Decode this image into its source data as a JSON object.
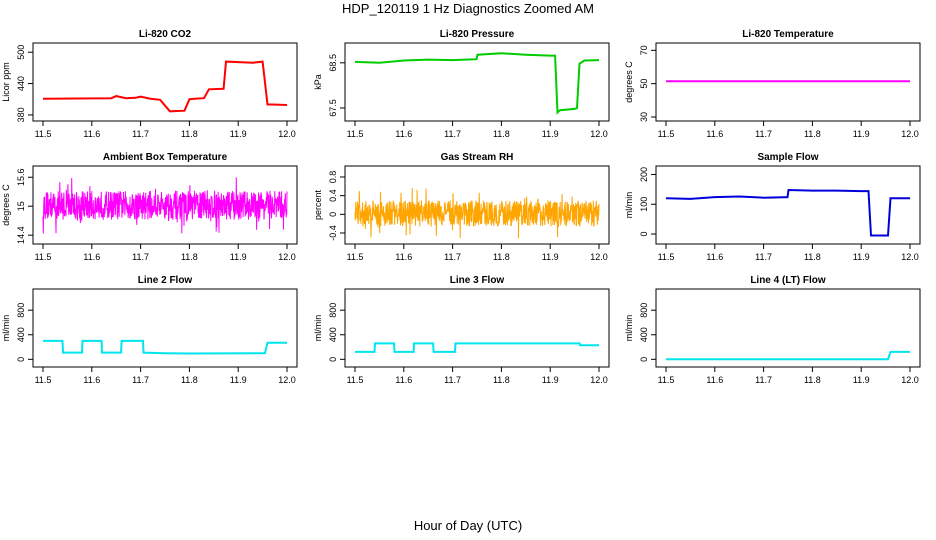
{
  "page": {
    "title": "HDP_120119  1 Hz Diagnostics Zoomed AM",
    "xlabel": "Hour of Day (UTC)"
  },
  "chart_data": [
    {
      "type": "line",
      "title": "Li-820 CO2",
      "xlabel": "",
      "ylabel": "Licor ppm",
      "color": "#ff0000",
      "xlim": [
        11.5,
        12.0
      ],
      "ylim": [
        376,
        510
      ],
      "xticks": [
        11.5,
        11.6,
        11.7,
        11.8,
        11.9,
        12.0
      ],
      "yticks": [
        380,
        440,
        500
      ],
      "series": [
        {
          "x": [
            11.5,
            11.64,
            11.65,
            11.67,
            11.69,
            11.7,
            11.72,
            11.74,
            11.76,
            11.79,
            11.8,
            11.81,
            11.83,
            11.84,
            11.87,
            11.875,
            11.93,
            11.95,
            11.96,
            11.97,
            12.0
          ],
          "y": [
            411,
            412,
            416,
            412,
            413,
            415,
            411,
            409,
            387,
            388,
            410,
            411,
            412,
            429,
            430,
            482,
            480,
            482,
            400,
            400,
            399
          ]
        }
      ]
    },
    {
      "type": "line",
      "title": "Li-820 Pressure",
      "xlabel": "",
      "ylabel": "kPa",
      "color": "#00cc00",
      "xlim": [
        11.5,
        12.0
      ],
      "ylim": [
        67.3,
        68.85
      ],
      "xticks": [
        11.5,
        11.6,
        11.7,
        11.8,
        11.9,
        12.0
      ],
      "yticks": [
        67.5,
        68.5
      ],
      "series": [
        {
          "x": [
            11.5,
            11.55,
            11.6,
            11.65,
            11.7,
            11.749,
            11.751,
            11.8,
            11.85,
            11.9,
            11.91,
            11.915,
            11.92,
            11.95,
            11.955,
            11.96,
            11.97,
            12.0
          ],
          "y": [
            68.52,
            68.5,
            68.55,
            68.57,
            68.56,
            68.58,
            68.68,
            68.71,
            68.68,
            68.66,
            68.66,
            67.4,
            67.45,
            67.48,
            67.5,
            68.48,
            68.55,
            68.56
          ]
        }
      ]
    },
    {
      "type": "line",
      "title": "Li-820 Temperature",
      "xlabel": "",
      "ylabel": "degrees C",
      "color": "#ff00ff",
      "xlim": [
        11.5,
        12.0
      ],
      "ylim": [
        30,
        72
      ],
      "xticks": [
        11.5,
        11.6,
        11.7,
        11.8,
        11.9,
        12.0
      ],
      "yticks": [
        30,
        50,
        70
      ],
      "series": [
        {
          "x": [
            11.5,
            12.0
          ],
          "y": [
            51.5,
            51.5
          ]
        }
      ]
    },
    {
      "type": "line",
      "title": "Ambient Box Temperature",
      "xlabel": "",
      "ylabel": "degrees C",
      "color": "#ff00ff",
      "xlim": [
        11.5,
        12.0
      ],
      "ylim": [
        14.3,
        15.75
      ],
      "xticks": [
        11.5,
        11.6,
        11.7,
        11.8,
        11.9,
        12.0
      ],
      "yticks": [
        14.4,
        15.0,
        15.6
      ],
      "noise": {
        "center": 15.02,
        "spread": 0.3,
        "spike": 0.6
      },
      "series": [
        {
          "x": [
            11.5,
            12.0
          ],
          "y": [
            15.02,
            15.02
          ]
        }
      ]
    },
    {
      "type": "line",
      "title": "Gas Stream RH",
      "xlabel": "",
      "ylabel": "percent",
      "color": "#ffa500",
      "xlim": [
        11.5,
        12.0
      ],
      "ylim": [
        -0.55,
        0.95
      ],
      "xticks": [
        11.5,
        11.6,
        11.7,
        11.8,
        11.9,
        12.0
      ],
      "yticks": [
        -0.4,
        0.0,
        0.4,
        0.8
      ],
      "noise": {
        "center": 0.02,
        "spread": 0.28,
        "spike": 0.55
      },
      "series": [
        {
          "x": [
            11.5,
            12.0
          ],
          "y": [
            0.02,
            0.02
          ]
        }
      ]
    },
    {
      "type": "line",
      "title": "Sample Flow",
      "xlabel": "",
      "ylabel": "ml/min",
      "color": "#0000dd",
      "xlim": [
        11.5,
        12.0
      ],
      "ylim": [
        -20,
        215
      ],
      "xticks": [
        11.5,
        11.6,
        11.7,
        11.8,
        11.9,
        12.0
      ],
      "yticks": [
        0,
        100,
        200
      ],
      "series": [
        {
          "x": [
            11.5,
            11.55,
            11.6,
            11.65,
            11.7,
            11.749,
            11.751,
            11.8,
            11.85,
            11.9,
            11.915,
            11.92,
            11.955,
            11.96,
            12.0
          ],
          "y": [
            120,
            118,
            124,
            126,
            122,
            124,
            148,
            146,
            146,
            144,
            144,
            -5,
            -5,
            120,
            120
          ]
        }
      ]
    },
    {
      "type": "line",
      "title": "Line 2 Flow",
      "xlabel": "",
      "ylabel": "ml/min",
      "color": "#00e5ee",
      "xlim": [
        11.5,
        12.0
      ],
      "ylim": [
        -60,
        1080
      ],
      "xticks": [
        11.5,
        11.6,
        11.7,
        11.8,
        11.9,
        12.0
      ],
      "yticks": [
        0,
        400,
        800
      ],
      "series": [
        {
          "x": [
            11.5,
            11.54,
            11.541,
            11.58,
            11.581,
            11.62,
            11.621,
            11.66,
            11.661,
            11.705,
            11.706,
            11.75,
            11.8,
            11.955,
            11.96,
            12.0
          ],
          "y": [
            300,
            300,
            110,
            110,
            300,
            300,
            110,
            110,
            300,
            300,
            110,
            100,
            95,
            100,
            270,
            270
          ]
        }
      ]
    },
    {
      "type": "line",
      "title": "Line 3 Flow",
      "xlabel": "",
      "ylabel": "ml/min",
      "color": "#00e5ee",
      "xlim": [
        11.5,
        12.0
      ],
      "ylim": [
        -60,
        1080
      ],
      "xticks": [
        11.5,
        11.6,
        11.7,
        11.8,
        11.9,
        12.0
      ],
      "yticks": [
        0,
        400,
        800
      ],
      "series": [
        {
          "x": [
            11.5,
            11.54,
            11.541,
            11.58,
            11.581,
            11.62,
            11.621,
            11.66,
            11.661,
            11.705,
            11.706,
            11.96,
            11.961,
            12.0
          ],
          "y": [
            120,
            120,
            260,
            260,
            120,
            120,
            260,
            260,
            120,
            120,
            260,
            260,
            230,
            230
          ]
        }
      ]
    },
    {
      "type": "line",
      "title": "Line 4 (LT) Flow",
      "xlabel": "",
      "ylabel": "ml/min",
      "color": "#00e5ee",
      "xlim": [
        11.5,
        12.0
      ],
      "ylim": [
        -60,
        1080
      ],
      "xticks": [
        11.5,
        11.6,
        11.7,
        11.8,
        11.9,
        12.0
      ],
      "yticks": [
        0,
        400,
        800
      ],
      "series": [
        {
          "x": [
            11.5,
            11.955,
            11.96,
            12.0
          ],
          "y": [
            0,
            0,
            120,
            120
          ]
        }
      ]
    }
  ]
}
